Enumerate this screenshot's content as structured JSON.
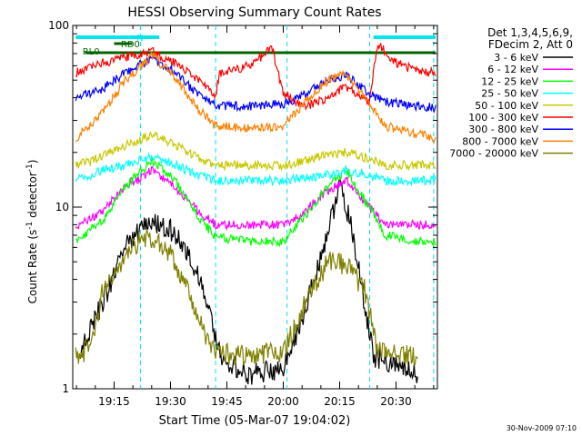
{
  "chart_data": {
    "type": "line",
    "title": "HESSI Observing Summary Count Rates",
    "xlabel": "Start Time (05-Mar-07 19:04:02)",
    "ylabel_main": "Count Rate (s",
    "ylabel_sup1": "-1",
    "ylabel_mid": " detector",
    "ylabel_sup2": "-1",
    "ylabel_end": ")",
    "yscale": "log",
    "ylim": [
      1,
      100
    ],
    "xlim": [
      "19:04",
      "20:41"
    ],
    "ytick_labels": [
      "1",
      "10",
      "100"
    ],
    "xtick_labels": [
      "19:15",
      "19:30",
      "19:45",
      "20:00",
      "20:15",
      "20:30"
    ],
    "legend_header": [
      "Det 1,3,4,5,6,9,",
      "FDecim 2, Att 0"
    ],
    "legend_placement": "right",
    "flags": [
      {
        "label": "N",
        "color": "#00e5ee"
      },
      {
        "label": "RD0",
        "color": "#006400"
      },
      {
        "label": "RL0",
        "color": "#006400"
      }
    ],
    "vertical_markers": [
      "19:22",
      "19:42",
      "20:01",
      "20:23",
      "20:40"
    ],
    "series": [
      {
        "name": "3 - 6 keV",
        "color": "#000000",
        "values": [
          [
            19.1,
            1.6
          ],
          [
            19.2,
            3.0
          ],
          [
            19.3,
            6.0
          ],
          [
            19.4,
            8.5
          ],
          [
            19.5,
            7.5
          ],
          [
            19.58,
            5.5
          ],
          [
            19.65,
            3.5
          ],
          [
            19.72,
            1.5
          ],
          [
            19.85,
            1.2
          ],
          [
            20.0,
            1.3
          ],
          [
            20.05,
            1.8
          ],
          [
            20.15,
            4.5
          ],
          [
            20.25,
            13
          ],
          [
            20.3,
            8
          ],
          [
            20.35,
            3.5
          ],
          [
            20.4,
            1.5
          ],
          [
            20.6,
            1.2
          ]
        ]
      },
      {
        "name": "6 - 12 keV",
        "color": "#ff00ff",
        "values": [
          [
            19.08,
            7.8
          ],
          [
            19.2,
            9.5
          ],
          [
            19.3,
            13
          ],
          [
            19.42,
            16
          ],
          [
            19.52,
            13
          ],
          [
            19.62,
            9.5
          ],
          [
            19.7,
            8.0
          ],
          [
            19.8,
            8.0
          ],
          [
            20.0,
            8.0
          ],
          [
            20.08,
            9
          ],
          [
            20.18,
            12
          ],
          [
            20.28,
            14
          ],
          [
            20.38,
            10
          ],
          [
            20.45,
            8
          ],
          [
            20.6,
            8
          ],
          [
            20.68,
            8
          ]
        ]
      },
      {
        "name": "12 - 25 keV",
        "color": "#00ff00",
        "values": [
          [
            19.08,
            6.5
          ],
          [
            19.2,
            8.5
          ],
          [
            19.3,
            13
          ],
          [
            19.42,
            18
          ],
          [
            19.52,
            14
          ],
          [
            19.62,
            9
          ],
          [
            19.7,
            6.8
          ],
          [
            19.85,
            6.5
          ],
          [
            20.0,
            6.5
          ],
          [
            20.1,
            9
          ],
          [
            20.2,
            13
          ],
          [
            20.28,
            16
          ],
          [
            20.38,
            10
          ],
          [
            20.45,
            7
          ],
          [
            20.6,
            6.5
          ],
          [
            20.68,
            6.5
          ]
        ]
      },
      {
        "name": "25 - 50 keV",
        "color": "#00ffff",
        "values": [
          [
            19.08,
            14
          ],
          [
            19.2,
            16
          ],
          [
            19.3,
            17
          ],
          [
            19.42,
            19
          ],
          [
            19.52,
            17
          ],
          [
            19.62,
            15
          ],
          [
            19.7,
            14
          ],
          [
            19.85,
            14
          ],
          [
            20.0,
            14
          ],
          [
            20.1,
            14.5
          ],
          [
            20.2,
            15
          ],
          [
            20.28,
            16
          ],
          [
            20.38,
            15
          ],
          [
            20.45,
            14
          ],
          [
            20.6,
            14
          ],
          [
            20.68,
            14
          ]
        ]
      },
      {
        "name": "50 - 100 keV",
        "color": "#c8c800",
        "values": [
          [
            19.08,
            17
          ],
          [
            19.2,
            19
          ],
          [
            19.3,
            22
          ],
          [
            19.42,
            25
          ],
          [
            19.52,
            22
          ],
          [
            19.62,
            19
          ],
          [
            19.7,
            17
          ],
          [
            19.85,
            17
          ],
          [
            20.0,
            17
          ],
          [
            20.1,
            18
          ],
          [
            20.2,
            19.5
          ],
          [
            20.28,
            20
          ],
          [
            20.38,
            18.5
          ],
          [
            20.45,
            17
          ],
          [
            20.6,
            17
          ],
          [
            20.68,
            17
          ]
        ]
      },
      {
        "name": "100 - 300 keV",
        "color": "#ff0000",
        "values": [
          [
            19.08,
            55
          ],
          [
            19.15,
            60
          ],
          [
            19.3,
            67
          ],
          [
            19.42,
            72
          ],
          [
            19.52,
            62
          ],
          [
            19.62,
            50
          ],
          [
            19.7,
            42
          ],
          [
            19.72,
            55
          ],
          [
            19.85,
            60
          ],
          [
            19.95,
            75
          ],
          [
            20.0,
            42
          ],
          [
            20.1,
            36
          ],
          [
            20.2,
            40
          ],
          [
            20.28,
            46
          ],
          [
            20.38,
            38
          ],
          [
            20.42,
            80
          ],
          [
            20.5,
            62
          ],
          [
            20.6,
            56
          ],
          [
            20.68,
            55
          ]
        ]
      },
      {
        "name": "300 - 800 keV",
        "color": "#0000ff",
        "values": [
          [
            19.08,
            40
          ],
          [
            19.2,
            45
          ],
          [
            19.3,
            55
          ],
          [
            19.42,
            66
          ],
          [
            19.52,
            55
          ],
          [
            19.62,
            42
          ],
          [
            19.7,
            36
          ],
          [
            19.85,
            36
          ],
          [
            20.0,
            37
          ],
          [
            20.1,
            42
          ],
          [
            20.2,
            50
          ],
          [
            20.28,
            53
          ],
          [
            20.38,
            42
          ],
          [
            20.45,
            38
          ],
          [
            20.6,
            36
          ],
          [
            20.68,
            35
          ]
        ]
      },
      {
        "name": "800 - 7000 keV",
        "color": "#ff8000",
        "values": [
          [
            19.08,
            24
          ],
          [
            19.2,
            33
          ],
          [
            19.3,
            50
          ],
          [
            19.42,
            68
          ],
          [
            19.52,
            52
          ],
          [
            19.62,
            35
          ],
          [
            19.7,
            28
          ],
          [
            19.85,
            27
          ],
          [
            20.0,
            28
          ],
          [
            20.1,
            38
          ],
          [
            20.2,
            50
          ],
          [
            20.28,
            54
          ],
          [
            20.38,
            38
          ],
          [
            20.45,
            28
          ],
          [
            20.6,
            25
          ],
          [
            20.68,
            24
          ]
        ]
      },
      {
        "name": "7000 - 20000 keV",
        "color": "#808000",
        "values": [
          [
            19.08,
            1.5
          ],
          [
            19.15,
            1.7
          ],
          [
            19.2,
            3.5
          ],
          [
            19.3,
            5.5
          ],
          [
            19.4,
            7.0
          ],
          [
            19.5,
            5.5
          ],
          [
            19.6,
            3.0
          ],
          [
            19.68,
            1.6
          ],
          [
            19.85,
            1.5
          ],
          [
            20.0,
            1.6
          ],
          [
            20.1,
            3.0
          ],
          [
            20.2,
            5.0
          ],
          [
            20.28,
            4.8
          ],
          [
            20.36,
            3.5
          ],
          [
            20.42,
            1.6
          ],
          [
            20.6,
            1.5
          ]
        ]
      }
    ]
  },
  "footer_date": "30-Nov-2009 07:10"
}
